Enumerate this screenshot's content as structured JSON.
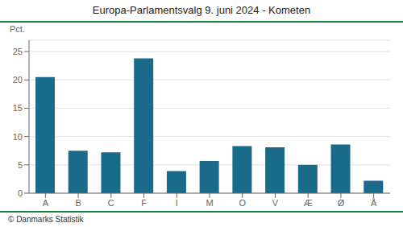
{
  "chart_data": {
    "type": "bar",
    "title": "Europa-Parlamentsvalg 9. juni 2024 - Kometen",
    "categories": [
      "A",
      "B",
      "C",
      "F",
      "I",
      "M",
      "O",
      "V",
      "Æ",
      "Ø",
      "Å"
    ],
    "values": [
      20.5,
      7.5,
      7.2,
      23.8,
      3.9,
      5.7,
      8.3,
      8.1,
      5.0,
      8.6,
      2.2
    ],
    "color": "#1a6b8a",
    "ylabel": "Pct.",
    "ylim": [
      0,
      27
    ],
    "yticks": [
      0,
      5,
      10,
      15,
      20,
      25
    ],
    "grid": true,
    "annotation": "© Danmarks Statistik"
  }
}
